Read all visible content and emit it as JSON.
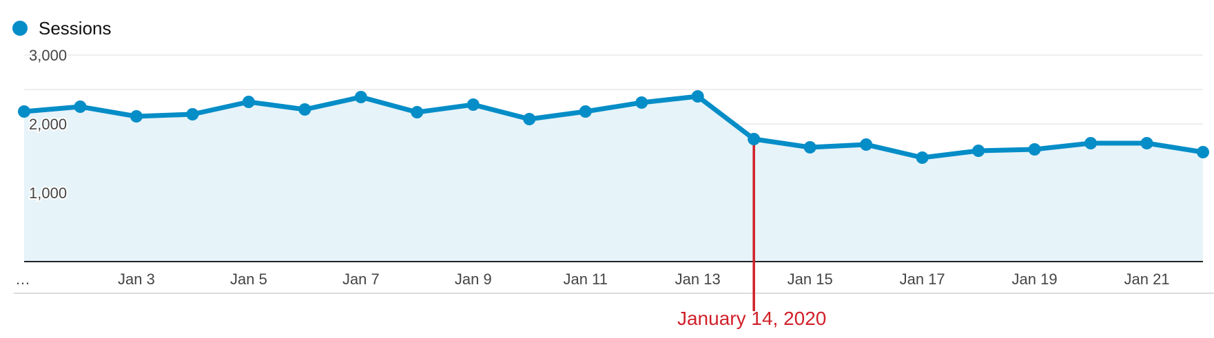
{
  "legend": {
    "series_label": "Sessions"
  },
  "colors": {
    "series": "#058dc7",
    "fill": "#e6f3f9",
    "annotation": "#d0202a",
    "grid": "#e3e3e3"
  },
  "chart_data": {
    "type": "area",
    "series": [
      {
        "name": "Sessions",
        "values": [
          2180,
          2250,
          2110,
          2140,
          2320,
          2210,
          2390,
          2170,
          2280,
          2070,
          2180,
          2310,
          2400,
          1780,
          1660,
          1700,
          1510,
          1610,
          1630,
          1720,
          1720,
          1590
        ]
      }
    ],
    "x": [
      "Jan 1",
      "Jan 2",
      "Jan 3",
      "Jan 4",
      "Jan 5",
      "Jan 6",
      "Jan 7",
      "Jan 8",
      "Jan 9",
      "Jan 10",
      "Jan 11",
      "Jan 12",
      "Jan 13",
      "Jan 14",
      "Jan 15",
      "Jan 16",
      "Jan 17",
      "Jan 18",
      "Jan 19",
      "Jan 20",
      "Jan 21",
      "Jan 22"
    ],
    "x_tick_labels": [
      "…",
      "Jan 3",
      "Jan 5",
      "Jan 7",
      "Jan 9",
      "Jan 11",
      "Jan 13",
      "Jan 15",
      "Jan 17",
      "Jan 19",
      "Jan 21"
    ],
    "x_tick_indices": [
      0,
      2,
      4,
      6,
      8,
      10,
      12,
      14,
      16,
      18,
      20
    ],
    "y_tick_labels": [
      "1,000",
      "2,000",
      "3,000"
    ],
    "y_tick_values": [
      1000,
      2000,
      3000
    ],
    "ylim": [
      0,
      3000
    ],
    "grid": true,
    "legend_position": "top-left",
    "annotation": {
      "label": "January 14, 2020",
      "index": 13
    }
  }
}
